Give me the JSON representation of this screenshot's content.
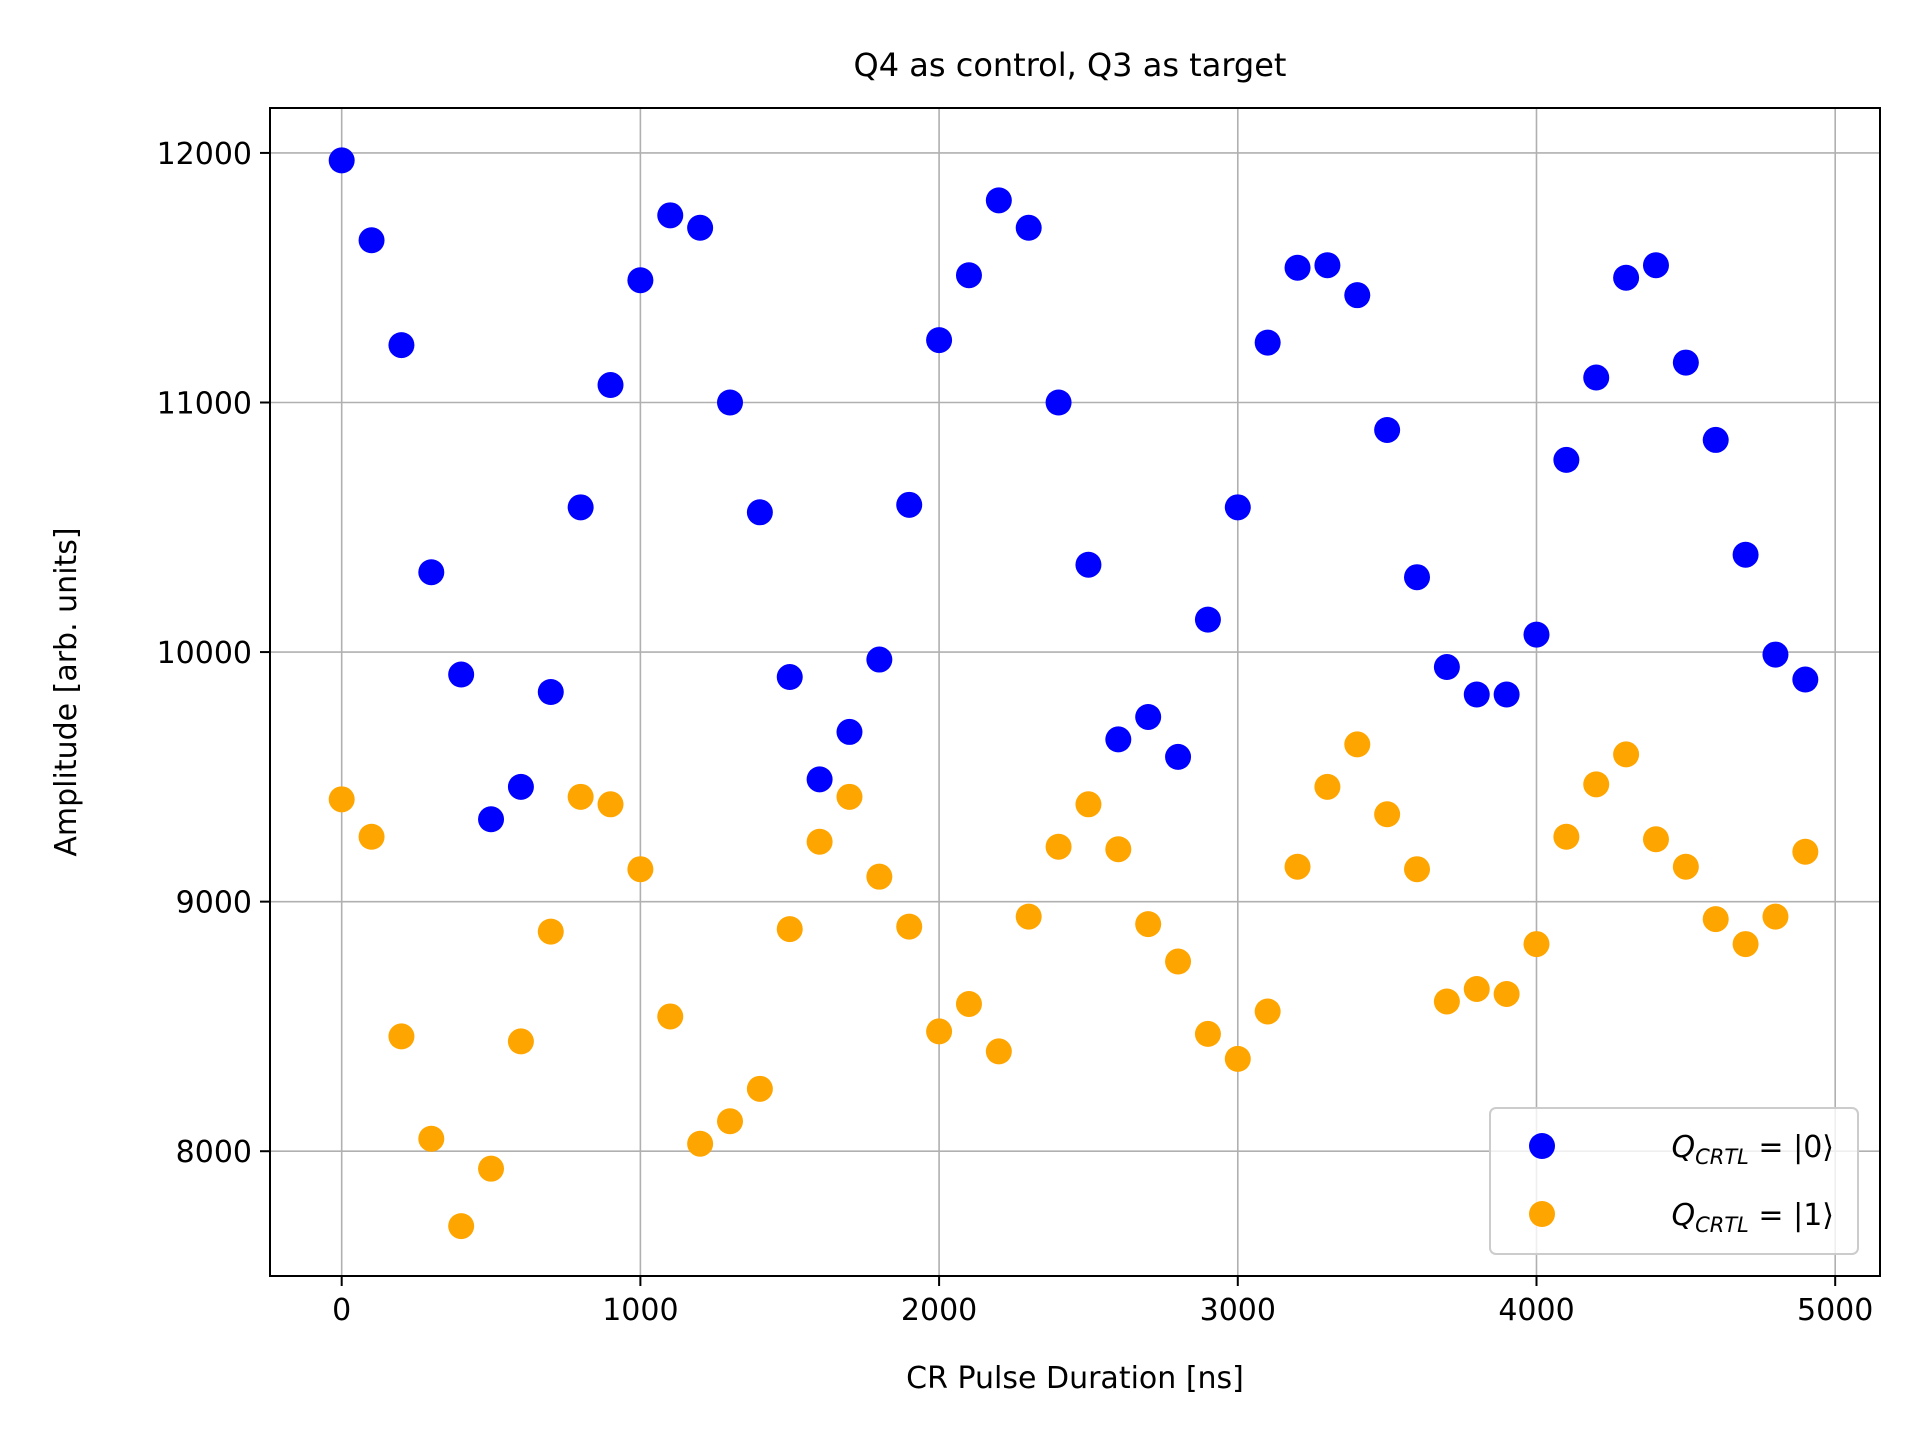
{
  "chart_data": {
    "type": "scatter",
    "title": "Q4 as control, Q3 as target",
    "xlabel": "CR Pulse Duration [ns]",
    "ylabel": "Amplitude [arb. units]",
    "xlim": [
      -240,
      5150
    ],
    "ylim": [
      7500,
      12180
    ],
    "xticks": [
      0,
      1000,
      2000,
      3000,
      4000,
      5000
    ],
    "yticks": [
      8000,
      9000,
      10000,
      11000,
      12000
    ],
    "grid": true,
    "legend_position": "lower-right",
    "x": [
      0,
      100,
      200,
      300,
      400,
      500,
      600,
      700,
      800,
      900,
      1000,
      1100,
      1200,
      1300,
      1400,
      1500,
      1600,
      1700,
      1800,
      1900,
      2000,
      2100,
      2200,
      2300,
      2400,
      2500,
      2600,
      2700,
      2800,
      2900,
      3000,
      3100,
      3200,
      3300,
      3400,
      3500,
      3600,
      3700,
      3800,
      3900,
      4000,
      4100,
      4200,
      4300,
      4400,
      4500,
      4600,
      4700,
      4800,
      4900
    ],
    "series": [
      {
        "name": "Q_CRTL = |0⟩",
        "label_main": "Q",
        "label_sub": "CRTL",
        "label_rest": " = |0⟩",
        "color": "#0000ff",
        "values": [
          11970,
          11650,
          11230,
          10320,
          9910,
          9330,
          9460,
          9840,
          10580,
          11070,
          11490,
          11750,
          11700,
          11000,
          10560,
          9900,
          9490,
          9680,
          9970,
          10590,
          11250,
          11510,
          11810,
          11700,
          11000,
          10350,
          9650,
          9740,
          9580,
          10130,
          10580,
          11240,
          11540,
          11550,
          11430,
          10890,
          10300,
          9940,
          9830,
          9830,
          10070,
          10770,
          11100,
          11500,
          11550,
          11160,
          10850,
          10390,
          9990,
          9890
        ]
      },
      {
        "name": "Q_CRTL = |1⟩",
        "label_main": "Q",
        "label_sub": "CRTL",
        "label_rest": " = |1⟩",
        "color": "#ffa500",
        "values": [
          9410,
          9260,
          8460,
          8050,
          7700,
          7930,
          8440,
          8880,
          9420,
          9390,
          9130,
          8540,
          8030,
          8120,
          8250,
          8890,
          9240,
          9420,
          9100,
          8900,
          8480,
          8590,
          8400,
          8940,
          9220,
          9390,
          9210,
          8910,
          8760,
          8470,
          8370,
          8560,
          9140,
          9460,
          9630,
          9350,
          9130,
          8600,
          8650,
          8630,
          8830,
          9260,
          9470,
          9590,
          9250,
          9140,
          8930,
          8830,
          8940,
          9200
        ]
      }
    ]
  }
}
